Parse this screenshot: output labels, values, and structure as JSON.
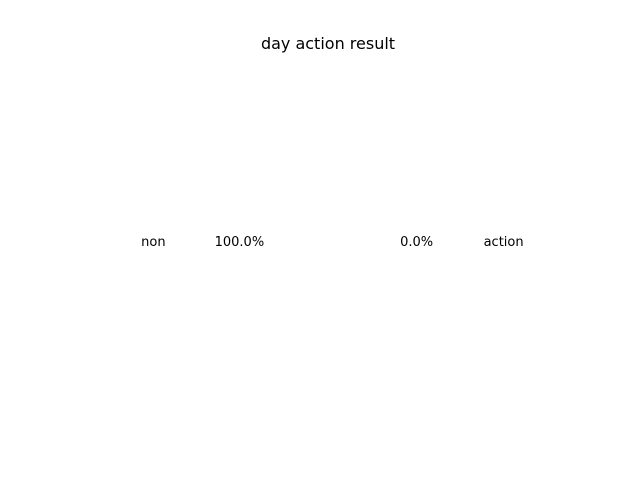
{
  "chart_data": {
    "type": "pie",
    "title": "day action result",
    "categories": [
      "non",
      "action"
    ],
    "values": [
      100.0,
      0.0
    ],
    "value_labels": [
      "100.0%",
      "0.0%"
    ],
    "legend": "none"
  }
}
